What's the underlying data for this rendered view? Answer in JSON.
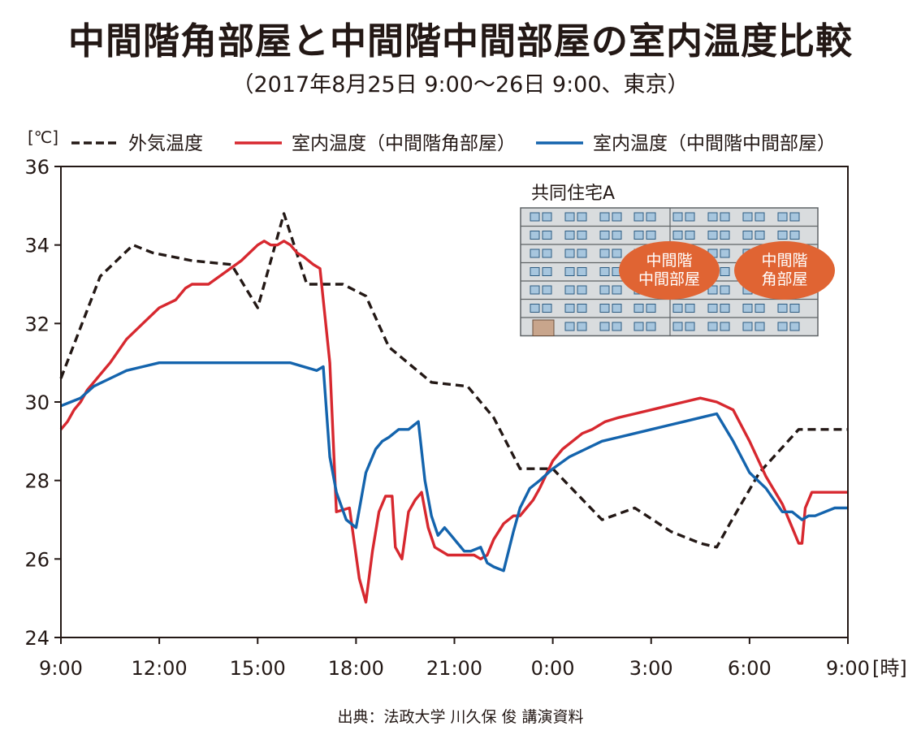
{
  "chart_data": {
    "type": "line",
    "title": "中間階角部屋と中間階中間部屋の室内温度比較",
    "subtitle": "（2017年8月25日 9:00～26日 9:00、東京）",
    "y_unit": "[℃]",
    "x_unit": "[時]",
    "ylim": [
      24,
      36
    ],
    "y_ticks": [
      "24",
      "26",
      "28",
      "30",
      "32",
      "34",
      "36"
    ],
    "x_ticks": [
      "9:00",
      "12:00",
      "15:00",
      "18:00",
      "21:00",
      "0:00",
      "3:00",
      "6:00",
      "9:00"
    ],
    "xlim_hours": [
      0,
      24
    ],
    "grid": false,
    "legend_position": "top",
    "series": [
      {
        "name": "外気温度",
        "color": "#231815",
        "style": "dashed",
        "x": [
          0,
          1.2,
          2.2,
          2.8,
          4.0,
          5.2,
          6.0,
          6.8,
          7.5,
          8.6,
          9.3,
          10.0,
          11.3,
          12.4,
          13.2,
          14.0,
          15.0,
          16.5,
          17.5,
          18.6,
          19.5,
          20.0,
          20.4,
          21.3,
          22.5,
          23.0,
          24.0
        ],
        "values": [
          30.6,
          33.2,
          34.0,
          33.8,
          33.6,
          33.5,
          32.4,
          34.8,
          33.0,
          33.0,
          32.7,
          31.4,
          30.5,
          30.4,
          29.6,
          28.3,
          28.3,
          27.0,
          27.3,
          26.7,
          26.4,
          26.3,
          26.9,
          28.2,
          29.3,
          29.3,
          29.3
        ]
      },
      {
        "name": "室内温度（中間階角部屋）",
        "color": "#d7282f",
        "style": "solid",
        "x": [
          0,
          0.2,
          0.4,
          0.6,
          0.8,
          1.0,
          1.2,
          1.5,
          2.0,
          2.5,
          3.0,
          3.5,
          3.8,
          4.0,
          4.5,
          5.0,
          5.5,
          6.0,
          6.2,
          6.4,
          6.6,
          6.8,
          7.0,
          7.2,
          7.4,
          7.7,
          7.9,
          8.2,
          8.4,
          8.8,
          9.1,
          9.3,
          9.5,
          9.7,
          9.9,
          10.1,
          10.2,
          10.4,
          10.6,
          10.8,
          11.0,
          11.2,
          11.4,
          11.6,
          11.8,
          12.0,
          12.2,
          12.4,
          12.6,
          12.8,
          13.0,
          13.2,
          13.5,
          13.8,
          14.0,
          14.2,
          14.4,
          14.6,
          15.0,
          15.3,
          15.6,
          15.9,
          16.2,
          16.6,
          17.0,
          17.5,
          18.0,
          18.5,
          19.0,
          19.5,
          20.0,
          20.5,
          21.0,
          21.5,
          22.0,
          22.3,
          22.5,
          22.6,
          22.7,
          22.9,
          23.2,
          23.4,
          23.7,
          24.0
        ],
        "values": [
          29.3,
          29.5,
          29.8,
          30.0,
          30.3,
          30.5,
          30.7,
          31.0,
          31.6,
          32.0,
          32.4,
          32.6,
          32.9,
          33.0,
          33.0,
          33.3,
          33.6,
          34.0,
          34.1,
          34.0,
          34.0,
          34.1,
          34.0,
          33.8,
          33.7,
          33.5,
          33.4,
          31.0,
          27.2,
          27.3,
          25.5,
          24.9,
          26.2,
          27.2,
          27.6,
          27.6,
          26.3,
          26.0,
          27.2,
          27.5,
          27.7,
          26.8,
          26.3,
          26.2,
          26.1,
          26.1,
          26.1,
          26.1,
          26.1,
          26.0,
          26.1,
          26.5,
          26.9,
          27.1,
          27.1,
          27.3,
          27.5,
          27.8,
          28.5,
          28.8,
          29.0,
          29.2,
          29.3,
          29.5,
          29.6,
          29.7,
          29.8,
          29.9,
          30.0,
          30.1,
          30.0,
          29.8,
          29.0,
          28.1,
          27.4,
          26.8,
          26.4,
          26.4,
          27.3,
          27.7,
          27.7,
          27.7,
          27.7,
          27.7
        ]
      },
      {
        "name": "室内温度（中間階中間部屋）",
        "color": "#1464ad",
        "style": "solid",
        "x": [
          0,
          0.3,
          0.6,
          1.0,
          1.5,
          2.0,
          2.5,
          3.0,
          3.5,
          4.0,
          5.0,
          6.0,
          7.0,
          7.8,
          8.0,
          8.2,
          8.4,
          8.7,
          9.0,
          9.3,
          9.6,
          9.8,
          10.0,
          10.3,
          10.6,
          10.9,
          11.1,
          11.3,
          11.5,
          11.7,
          11.9,
          12.1,
          12.3,
          12.5,
          12.8,
          13.0,
          13.2,
          13.5,
          13.8,
          14.0,
          14.3,
          14.6,
          15.0,
          15.5,
          16.0,
          16.5,
          17.0,
          17.5,
          18.0,
          18.5,
          19.0,
          19.5,
          20.0,
          20.5,
          21.0,
          21.5,
          22.0,
          22.3,
          22.6,
          22.8,
          23.0,
          23.3,
          23.6,
          24.0
        ],
        "values": [
          29.9,
          30.0,
          30.1,
          30.4,
          30.6,
          30.8,
          30.9,
          31.0,
          31.0,
          31.0,
          31.0,
          31.0,
          31.0,
          30.8,
          30.9,
          28.6,
          27.7,
          27.0,
          26.8,
          28.2,
          28.8,
          29.0,
          29.1,
          29.3,
          29.3,
          29.5,
          28.0,
          27.1,
          26.6,
          26.8,
          26.6,
          26.4,
          26.2,
          26.2,
          26.3,
          25.9,
          25.8,
          25.7,
          26.7,
          27.3,
          27.8,
          28.0,
          28.3,
          28.6,
          28.8,
          29.0,
          29.1,
          29.2,
          29.3,
          29.4,
          29.5,
          29.6,
          29.7,
          29.0,
          28.2,
          27.8,
          27.2,
          27.2,
          27.0,
          27.1,
          27.1,
          27.2,
          27.3,
          27.3
        ]
      }
    ]
  },
  "inset": {
    "title": "共同住宅A",
    "middle_room_label": [
      "中間階",
      "中間部屋"
    ],
    "corner_room_label": [
      "中間階",
      "角部屋"
    ],
    "bubble_color": "#e06433",
    "building_color": "#d9dcde",
    "window_color": "#a7c6de",
    "door_color": "#c8a58c"
  },
  "source": "出典：法政大学 川久保 俊 講演資料"
}
